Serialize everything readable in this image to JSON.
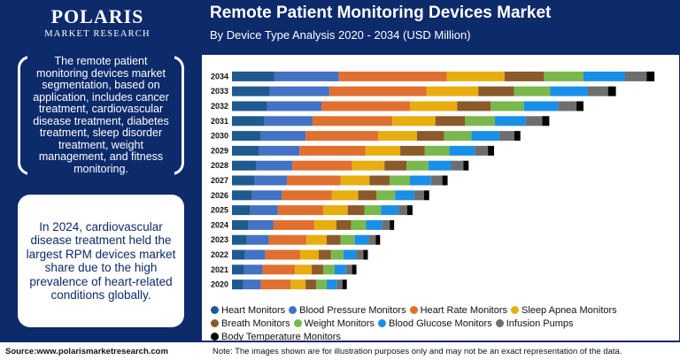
{
  "brand": {
    "name": "POLARIS",
    "tagline": "MARKET RESEARCH"
  },
  "sidebar": {
    "box1_text": "The remote patient monitoring devices market segmentation, based on application, includes cancer treatment, cardiovascular disease treatment, diabetes treatment, sleep disorder treatment, weight management, and fitness monitoring.",
    "box2_text": "In 2024, cardiovascular disease treatment held the largest RPM devices market share due to the high prevalence of heart-related conditions globally."
  },
  "footer": {
    "source": "Source:www.polarismarketresearch.com",
    "note": "Note: The images shown are for illustration purposes only and may not be an exact representation of the data."
  },
  "colors": {
    "navy": "#0d2a6b"
  },
  "chart_data": {
    "type": "bar",
    "orientation": "horizontal",
    "stacked": true,
    "title": "Remote Patient Monitoring Devices Market",
    "subtitle": "By Device Type Analysis 2020 - 2034 (USD Million)",
    "categories": [
      "2034",
      "2033",
      "2032",
      "2031",
      "2030",
      "2029",
      "2028",
      "2027",
      "2026",
      "2025",
      "2024",
      "2023",
      "2022",
      "2021",
      "2020"
    ],
    "series": [
      {
        "name": "Heart Monitors",
        "color": "#1f5a8e",
        "values": [
          48,
          43,
          40,
          37,
          33,
          31,
          28,
          26,
          23,
          21,
          19,
          17,
          15,
          14,
          13
        ]
      },
      {
        "name": "Blood Pressure Monitors",
        "color": "#4472c4",
        "values": [
          74,
          68,
          62,
          55,
          51,
          46,
          41,
          37,
          34,
          31,
          28,
          25,
          23,
          21,
          20
        ]
      },
      {
        "name": "Heart Rate Monitors",
        "color": "#e07030",
        "values": [
          123,
          111,
          101,
          91,
          83,
          75,
          68,
          61,
          57,
          52,
          47,
          43,
          40,
          37,
          34
        ]
      },
      {
        "name": "Sleep Apnea Monitors",
        "color": "#e8ae10",
        "values": [
          66,
          59,
          54,
          49,
          44,
          40,
          37,
          33,
          30,
          28,
          25,
          23,
          21,
          19,
          17
        ]
      },
      {
        "name": "Breath Monitors",
        "color": "#8b5a2b",
        "values": [
          45,
          41,
          38,
          34,
          31,
          28,
          25,
          23,
          21,
          19,
          17,
          16,
          14,
          13,
          12
        ]
      },
      {
        "name": "Weight Monitors",
        "color": "#79b84c",
        "values": [
          45,
          41,
          38,
          34,
          31,
          28,
          25,
          23,
          21,
          19,
          17,
          16,
          14,
          13,
          12
        ]
      },
      {
        "name": "Blood Glucose Monitors",
        "color": "#1a8fe8",
        "values": [
          47,
          43,
          39,
          35,
          32,
          29,
          26,
          24,
          22,
          20,
          18,
          16,
          15,
          13,
          12
        ]
      },
      {
        "name": "Infusion Pumps",
        "color": "#6e6e6e",
        "values": [
          25,
          23,
          21,
          19,
          17,
          15,
          14,
          13,
          11,
          10,
          9,
          8,
          8,
          7,
          6
        ]
      },
      {
        "name": "Body Temperature Monitors",
        "color": "#050505",
        "values": [
          9,
          9,
          8,
          8,
          7,
          7,
          6,
          6,
          6,
          6,
          5,
          5,
          5,
          5,
          5
        ]
      }
    ]
  }
}
